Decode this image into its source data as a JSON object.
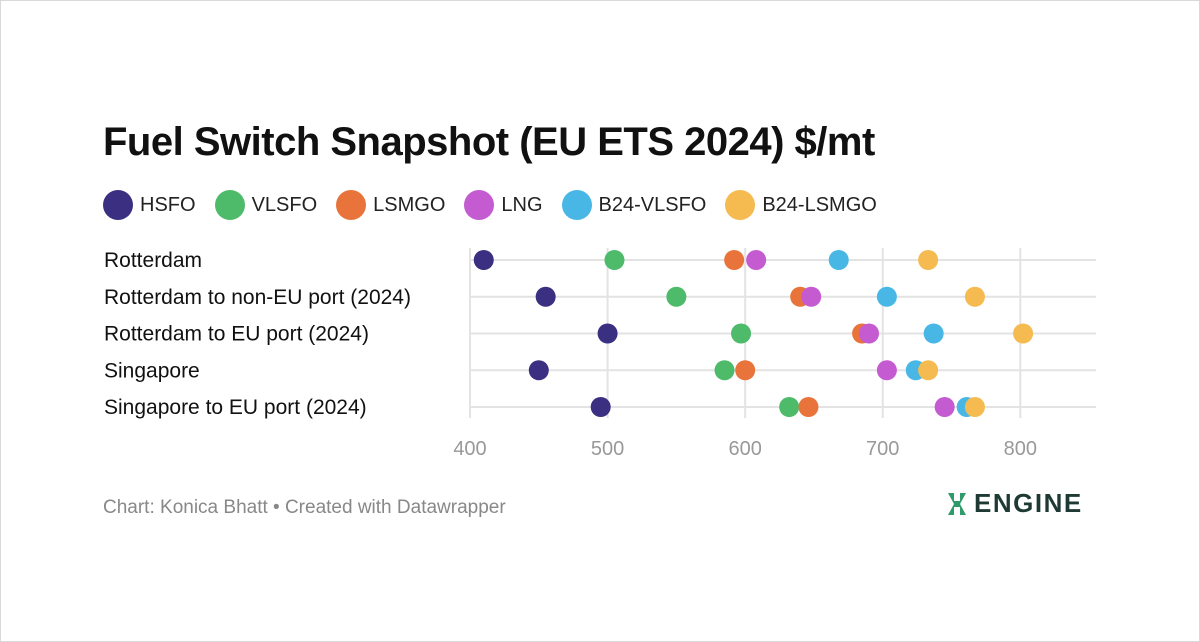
{
  "header": {
    "title": "Fuel Switch Snapshot (EU ETS 2024) $/mt"
  },
  "footer": {
    "credit": "Chart: Konica Bhatt • Created with Datawrapper",
    "logo_text": "ENGINE"
  },
  "colors": {
    "HSFO": "#3a2f80",
    "VLSFO": "#4dbb6a",
    "LSMGO": "#e8743b",
    "LNG": "#c45bd0",
    "B24-VLSFO": "#49b7e6",
    "B24-LSMGO": "#f5bb50",
    "grid": "#e3e3e3",
    "tick_text": "#999999",
    "logo": "#1f3a34",
    "logo_accent": "#2f9a6a"
  },
  "chart_data": {
    "type": "scatter",
    "subtype": "dot-range",
    "title": "Fuel Switch Snapshot (EU ETS 2024) $/mt",
    "categories": [
      "Rotterdam",
      "Rotterdam to non-EU port (2024)",
      "Rotterdam to EU port (2024)",
      "Singapore",
      "Singapore to EU port (2024)"
    ],
    "series": [
      {
        "name": "HSFO",
        "values": [
          410,
          455,
          500,
          450,
          495
        ]
      },
      {
        "name": "VLSFO",
        "values": [
          505,
          550,
          597,
          585,
          632
        ]
      },
      {
        "name": "LSMGO",
        "values": [
          592,
          640,
          685,
          600,
          646
        ]
      },
      {
        "name": "LNG",
        "values": [
          608,
          648,
          690,
          703,
          745
        ]
      },
      {
        "name": "B24-VLSFO",
        "values": [
          668,
          703,
          737,
          724,
          761
        ]
      },
      {
        "name": "B24-LSMGO",
        "values": [
          733,
          767,
          802,
          733,
          767
        ]
      }
    ],
    "xlim": [
      400,
      855
    ],
    "xticks": [
      "400",
      "500",
      "600",
      "700",
      "800"
    ],
    "xlabel": "",
    "ylabel": "",
    "grid": true,
    "legend_position": "top"
  }
}
